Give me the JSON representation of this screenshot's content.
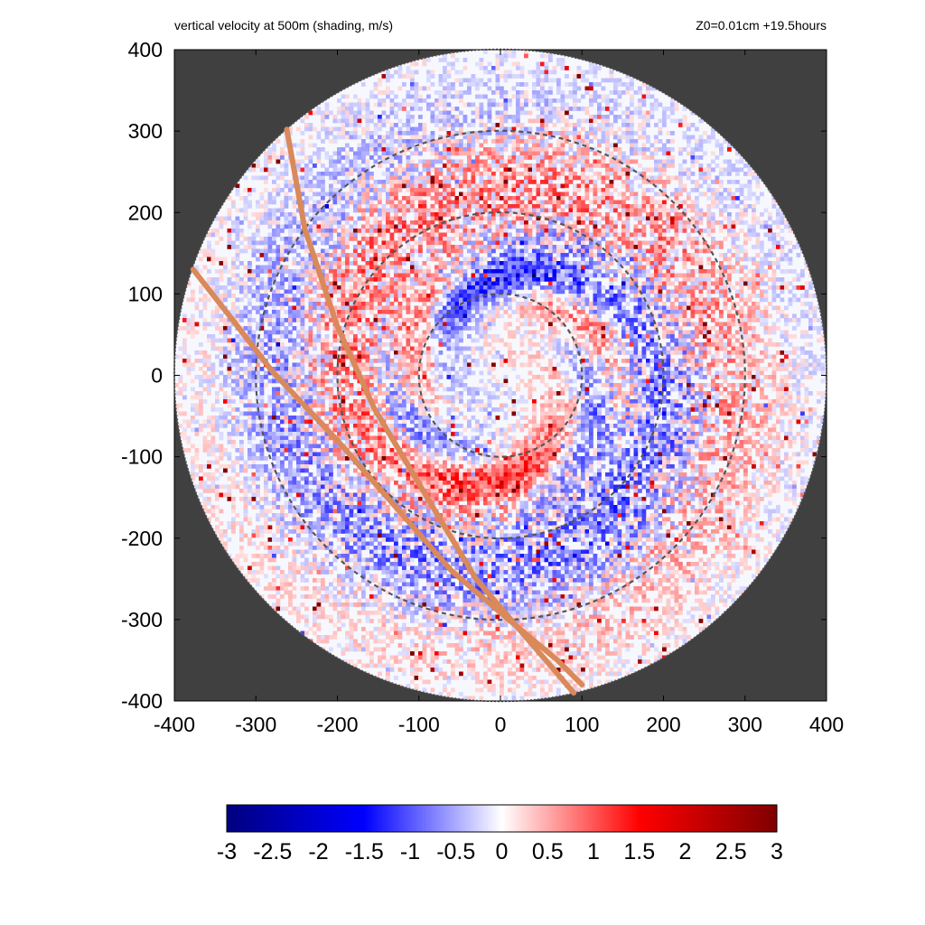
{
  "header": {
    "title": "vertical velocity at 500m (shading, m/s)",
    "info": "Z0=0.01cm  +19.5hours"
  },
  "chart_data": {
    "type": "heatmap",
    "title": "vertical velocity at 500m (shading, m/s)",
    "annotation": "Z0=0.01cm  +19.5hours",
    "xlabel": "",
    "ylabel": "",
    "xlim": [
      -400,
      400
    ],
    "ylim": [
      -400,
      400
    ],
    "xticks": [
      "-400",
      "-300",
      "-200",
      "-100",
      "0",
      "100",
      "200",
      "300",
      "400"
    ],
    "yticks": [
      "400",
      "300",
      "200",
      "100",
      "0",
      "-100",
      "-200",
      "-300",
      "-400"
    ],
    "grid": false,
    "domain_radius": 400,
    "outside_domain_color": "#404040",
    "range_rings_radius": [
      100,
      200,
      300
    ],
    "ring_style": "dashed gray",
    "tracks": [
      {
        "color": "#d9895a",
        "points": [
          [
            -262,
            302
          ],
          [
            -240,
            180
          ],
          [
            -200,
            60
          ],
          [
            -155,
            -40
          ],
          [
            -90,
            -150
          ],
          [
            -30,
            -250
          ],
          [
            30,
            -320
          ],
          [
            90,
            -390
          ]
        ]
      },
      {
        "color": "#d9895a",
        "points": [
          [
            -377,
            130
          ],
          [
            -330,
            70
          ],
          [
            -280,
            5
          ],
          [
            -200,
            -80
          ],
          [
            -130,
            -160
          ],
          [
            -60,
            -240
          ],
          [
            10,
            -300
          ],
          [
            70,
            -350
          ],
          [
            100,
            -380
          ]
        ]
      }
    ],
    "colorbar": {
      "min": -3,
      "max": 3,
      "ticks": [
        "-3",
        "-2.5",
        "-2",
        "-1.5",
        "-1",
        "-0.5",
        "0",
        "0.5",
        "1",
        "1.5",
        "2",
        "2.5",
        "3"
      ],
      "colors": [
        "#00007f",
        "#0000ff",
        "#ffffff",
        "#ff0000",
        "#7f0000"
      ],
      "placement": "bottom"
    }
  }
}
